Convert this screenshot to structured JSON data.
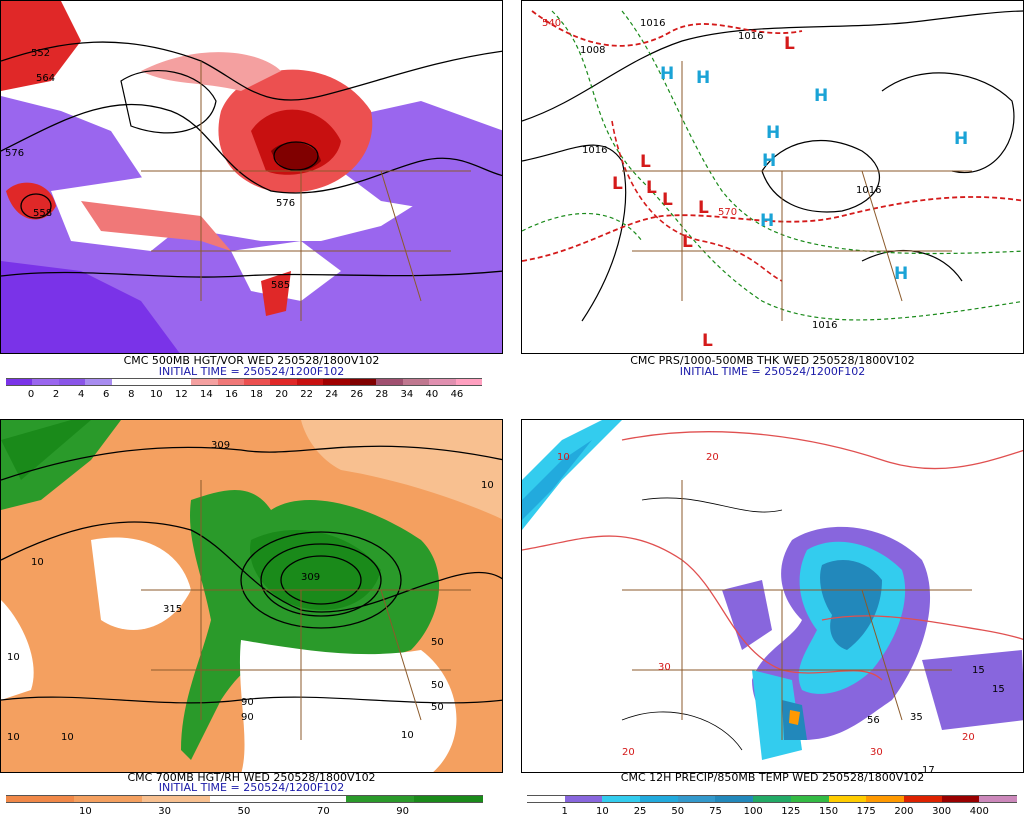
{
  "panels": [
    {
      "id": "p1",
      "title": "CMC 500MB HGT/VOR WED 250528/1800V102",
      "init": "INITIAL TIME = 250524/1200F102",
      "colorbar": {
        "colors": [
          "#7a33e8",
          "#9a66ee",
          "#8a55e8",
          "#a88cf0",
          "#ffffff",
          "#ffffff",
          "#ffffff",
          "#f4a0a0",
          "#f07878",
          "#ec5050",
          "#e02828",
          "#c81010",
          "#a00000",
          "#800000",
          "#a05070",
          "#c07890",
          "#e090b0",
          "#ffa0c0"
        ],
        "ticks": [
          "0",
          "2",
          "4",
          "6",
          "8",
          "10",
          "12",
          "14",
          "16",
          "18",
          "20",
          "22",
          "24",
          "26",
          "28",
          "34",
          "40",
          "46"
        ]
      },
      "contour_labels": [
        "552",
        "564",
        "576",
        "576",
        "558",
        "576",
        "585"
      ]
    },
    {
      "id": "p2",
      "title": "CMC PRS/1000-500MB THK WED 250528/1800V102",
      "init": "INITIAL TIME = 250524/1200F102",
      "contour_labels": [
        "540",
        "1016",
        "1008",
        "1016",
        "1016",
        "1016",
        "1016",
        "570"
      ],
      "highs": [
        "H",
        "H",
        "H",
        "H",
        "H",
        "H",
        "H",
        "H"
      ],
      "lows": [
        "L",
        "L",
        "L",
        "L",
        "L",
        "L",
        "L",
        "L"
      ]
    },
    {
      "id": "p3",
      "title": "CMC 700MB HGT/RH WED 250528/1800V102",
      "init": "INITIAL TIME = 250524/1200F102",
      "colorbar": {
        "colors": [
          "#f08848",
          "#f4a060",
          "#f8c090",
          "#ffffff",
          "#ffffff",
          "#2a9a2a",
          "#1a8a1a"
        ],
        "ticks": [
          "10",
          "30",
          "50",
          "70",
          "90"
        ]
      },
      "contour_labels": [
        "309",
        "10",
        "10",
        "10",
        "10",
        "50",
        "50",
        "90",
        "90",
        "309",
        "315",
        "50",
        "10",
        "10"
      ]
    },
    {
      "id": "p4",
      "title": "CMC 12H PRECIP/850MB TEMP WED 250528/1800V102",
      "colorbar": {
        "colors": [
          "#ffffff",
          "#8866dd",
          "#33ccee",
          "#22aadd",
          "#3399cc",
          "#2288bb",
          "#22aa66",
          "#33bb44",
          "#ffcc00",
          "#ff9900",
          "#dd2200",
          "#990000",
          "#cc88bb"
        ],
        "ticks": [
          "1",
          "10",
          "25",
          "50",
          "75",
          "100",
          "125",
          "150",
          "175",
          "200",
          "300",
          "400"
        ]
      },
      "contour_labels": [
        "10",
        "20",
        "30",
        "20",
        "30",
        "56",
        "35",
        "17",
        "15",
        "15",
        "20"
      ]
    }
  ]
}
